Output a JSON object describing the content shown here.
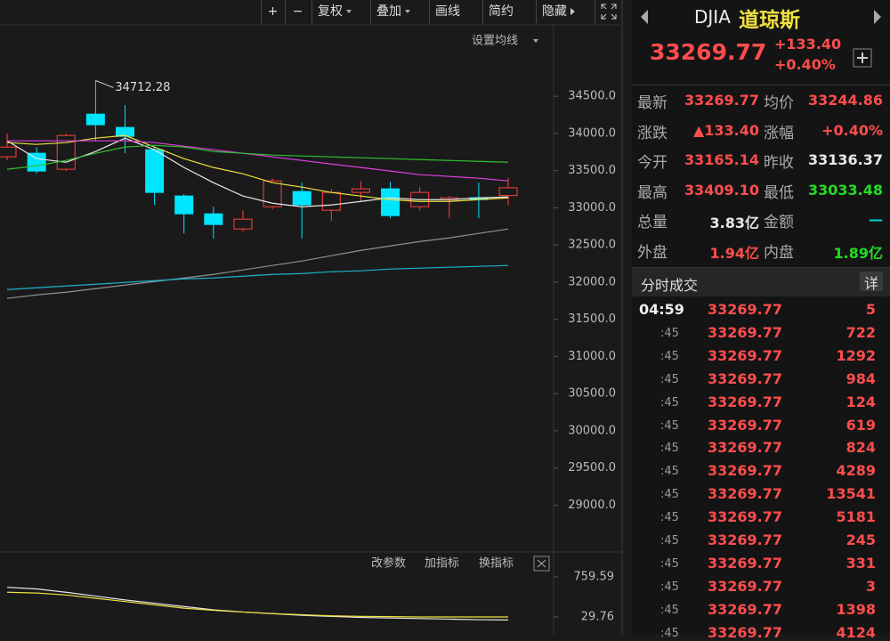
{
  "toolbar": {
    "buttons": [
      "+",
      "−",
      "复权",
      "叠加",
      "画线",
      "简约",
      "隐藏"
    ]
  },
  "chart_data": {
    "type": "candlestick",
    "ma_label": "设置均线",
    "categories": [
      null,
      null,
      null,
      null,
      null,
      null,
      null,
      null,
      null,
      null,
      null,
      null,
      null,
      null,
      null,
      null,
      null,
      null
    ],
    "open": [
      33686,
      33734,
      33518,
      34260,
      34081,
      33781,
      33159,
      32919,
      32716,
      33015,
      33219,
      32967,
      33207,
      33255,
      33015,
      33111,
      33135,
      33165.14
    ],
    "high": [
      33997,
      33817,
      33997,
      34712.28,
      34380,
      33817,
      33183,
      33015,
      32967,
      33398,
      33338,
      33255,
      33362,
      33350,
      33278,
      33159,
      33338,
      33409.1
    ],
    "low": [
      33638,
      33458,
      33494,
      33901,
      33734,
      33039,
      32656,
      32584,
      32680,
      32979,
      32584,
      32823,
      33087,
      32859,
      32967,
      32859,
      32859,
      33033.48
    ],
    "close": [
      33817,
      33494,
      33973,
      34117,
      33961,
      33207,
      32919,
      32775,
      32847,
      33362,
      33039,
      33207,
      33255,
      32895,
      33207,
      33135,
      33111,
      33269.77
    ],
    "up_color": "#ff4040",
    "down_color": "#00e5ff",
    "ma_series": [
      {
        "color": "#e8e8e8",
        "values": [
          33901,
          33661,
          33613,
          33757,
          33937,
          33781,
          33542,
          33338,
          33158,
          33062,
          33014,
          33038,
          33086,
          33134,
          33110,
          33110,
          33134,
          33146
        ]
      },
      {
        "color": "#f0e040",
        "values": [
          33877,
          33853,
          33877,
          33937,
          33973,
          33817,
          33661,
          33542,
          33458,
          33338,
          33278,
          33206,
          33158,
          33110,
          33086,
          33086,
          33110,
          33134
        ]
      },
      {
        "color": "#e040e0",
        "values": [
          33901,
          33901,
          33901,
          33901,
          33901,
          33877,
          33829,
          33781,
          33733,
          33685,
          33637,
          33589,
          33542,
          33494,
          33446,
          33422,
          33398,
          33362
        ]
      },
      {
        "color": "#30c030",
        "values": [
          33518,
          33565,
          33637,
          33733,
          33817,
          33841,
          33817,
          33757,
          33733,
          33709,
          33697,
          33685,
          33673,
          33661,
          33649,
          33637,
          33625,
          33613
        ]
      },
      {
        "color": "#909090",
        "values": [
          31781,
          31828,
          31864,
          31912,
          31960,
          32008,
          32056,
          32104,
          32164,
          32224,
          32284,
          32356,
          32427,
          32487,
          32547,
          32595,
          32655,
          32715
        ]
      },
      {
        "color": "#20b0d0",
        "values": [
          31900,
          31924,
          31948,
          31972,
          31996,
          32020,
          32044,
          32056,
          32080,
          32104,
          32116,
          32140,
          32152,
          32176,
          32188,
          32200,
          32212,
          32224
        ]
      }
    ],
    "ylim": [
      28370,
      35460
    ],
    "yticks": [
      {
        "value": 34500,
        "label": "34500.0"
      },
      {
        "value": 34000,
        "label": "34000.0"
      },
      {
        "value": 33500,
        "label": "33500.0"
      },
      {
        "value": 33000,
        "label": "33000.0"
      },
      {
        "value": 32500,
        "label": "32500.0"
      },
      {
        "value": 32000,
        "label": "32000.0"
      },
      {
        "value": 31500,
        "label": "31500.0"
      },
      {
        "value": 31000,
        "label": "31000.0"
      },
      {
        "value": 30500,
        "label": "30500.0"
      },
      {
        "value": 30000,
        "label": "30000.0"
      },
      {
        "value": 29500,
        "label": "29500.0"
      },
      {
        "value": 29000,
        "label": "29000.0"
      }
    ]
  },
  "sub_chart": {
    "type": "line",
    "buttons": [
      "改参数",
      "加指标",
      "换指标"
    ],
    "series": [
      {
        "color": "#e8e8e8",
        "values": [
          570,
          540,
          480,
          410,
          340,
          280,
          220,
          160,
          120,
          90,
          60,
          40,
          20,
          10,
          0,
          -10,
          -20,
          -25
        ]
      },
      {
        "color": "#f0e040",
        "values": [
          480,
          465,
          430,
          370,
          310,
          250,
          190,
          150,
          120,
          90,
          70,
          50,
          40,
          35,
          30,
          30,
          30,
          30
        ]
      }
    ],
    "ylim": [
      -295,
      1181
    ],
    "yticks": [
      759.59,
      29.76
    ]
  },
  "quote": {
    "code": "DJIA",
    "name": "道琼斯",
    "price": "33269.77",
    "change": "+133.40",
    "change_pct": "+0.40%",
    "stats": [
      [
        {
          "label": "最新",
          "value": "33269.77",
          "tone": "up"
        },
        {
          "label": "均价",
          "value": "33244.86",
          "tone": "up"
        }
      ],
      [
        {
          "label": "涨跌",
          "value": "▲133.40",
          "tone": "up"
        },
        {
          "label": "涨幅",
          "value": "+0.40%",
          "tone": "up"
        }
      ],
      [
        {
          "label": "今开",
          "value": "33165.14",
          "tone": "up"
        },
        {
          "label": "昨收",
          "value": "33136.37",
          "tone": "flat"
        }
      ],
      [
        {
          "label": "最高",
          "value": "33409.10",
          "tone": "up"
        },
        {
          "label": "最低",
          "value": "33033.48",
          "tone": "down"
        }
      ],
      [
        {
          "label": "总量",
          "value": "3.83亿",
          "tone": "flat"
        },
        {
          "label": "金额",
          "value": "—",
          "tone": "link"
        }
      ],
      [
        {
          "label": "外盘",
          "value": "1.94亿",
          "tone": "up"
        },
        {
          "label": "内盘",
          "value": "1.89亿",
          "tone": "down"
        }
      ]
    ],
    "trades_title": "分时成交",
    "detail": "详",
    "trades": [
      {
        "time": "04:59",
        "price": "33269.77",
        "volume": "5"
      },
      {
        "time": ":45",
        "price": "33269.77",
        "volume": "722"
      },
      {
        "time": ":45",
        "price": "33269.77",
        "volume": "1292"
      },
      {
        "time": ":45",
        "price": "33269.77",
        "volume": "984"
      },
      {
        "time": ":45",
        "price": "33269.77",
        "volume": "124"
      },
      {
        "time": ":45",
        "price": "33269.77",
        "volume": "619"
      },
      {
        "time": ":45",
        "price": "33269.77",
        "volume": "824"
      },
      {
        "time": ":45",
        "price": "33269.77",
        "volume": "4289"
      },
      {
        "time": ":45",
        "price": "33269.77",
        "volume": "13541"
      },
      {
        "time": ":45",
        "price": "33269.77",
        "volume": "5181"
      },
      {
        "time": ":45",
        "price": "33269.77",
        "volume": "245"
      },
      {
        "time": ":45",
        "price": "33269.77",
        "volume": "331"
      },
      {
        "time": ":45",
        "price": "33269.77",
        "volume": "3"
      },
      {
        "time": ":45",
        "price": "33269.77",
        "volume": "1398"
      },
      {
        "time": ":45",
        "price": "33269.77",
        "volume": "4124"
      }
    ]
  }
}
